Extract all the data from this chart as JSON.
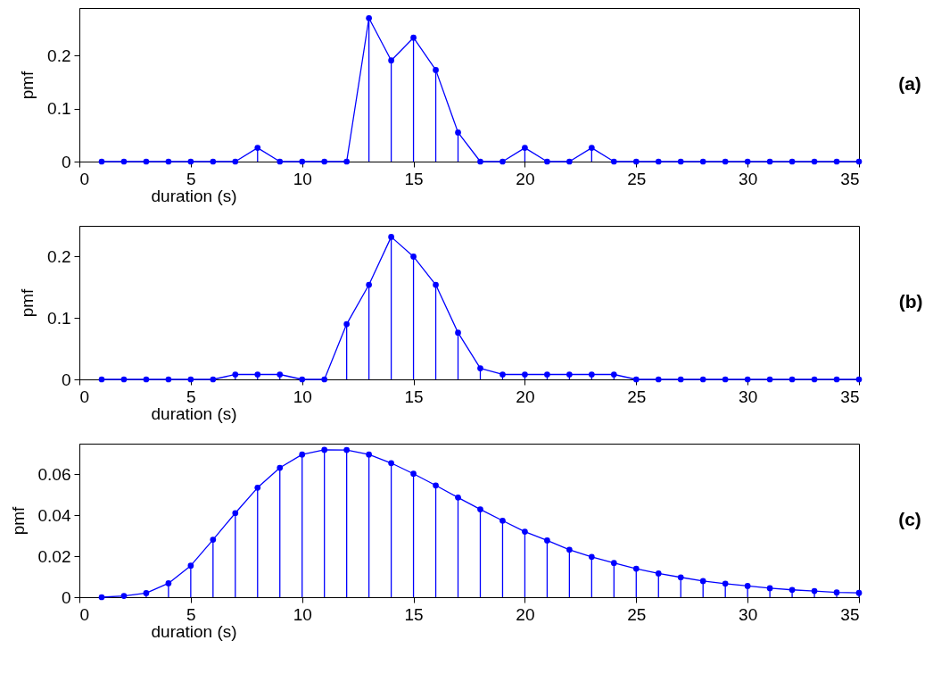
{
  "chart_data": [
    {
      "type": "lollipop",
      "xlabel": "duration (s)",
      "ylabel": "pmf",
      "annotations": [
        "(a)"
      ],
      "x": [
        1,
        2,
        3,
        4,
        5,
        6,
        7,
        8,
        9,
        10,
        11,
        12,
        13,
        14,
        15,
        16,
        17,
        18,
        19,
        20,
        21,
        22,
        23,
        24,
        25,
        26,
        27,
        28,
        29,
        30,
        31,
        32,
        33,
        34,
        35
      ],
      "xlim": [
        0,
        35
      ],
      "xticks": [
        0,
        5,
        10,
        15,
        20,
        25,
        30,
        35
      ],
      "ylim": [
        0,
        0.29
      ],
      "yticks": [
        0,
        0.1,
        0.2
      ],
      "marker": "circle",
      "series": [
        {
          "color": "#0000ff",
          "values": [
            0,
            0,
            0,
            0,
            0,
            0,
            0,
            0.026,
            0,
            0,
            0,
            0,
            0.271,
            0.191,
            0.234,
            0.173,
            0.055,
            0,
            0,
            0.026,
            0,
            0,
            0.026,
            0,
            0,
            0,
            0,
            0,
            0,
            0,
            0,
            0,
            0,
            0,
            0
          ]
        },
        {
          "type": "line",
          "marker": "none",
          "color": "#0000ff",
          "values": [
            0,
            0,
            0,
            0,
            0,
            0,
            0,
            0.026,
            0,
            0,
            0,
            0,
            0.271,
            0.191,
            0.234,
            0.173,
            0.055,
            0,
            0,
            0.026,
            0,
            0,
            0.026,
            0,
            0,
            0,
            0,
            0,
            0,
            0,
            0,
            0,
            0,
            0,
            0
          ]
        }
      ]
    },
    {
      "type": "lollipop",
      "xlabel": "duration (s)",
      "ylabel": "pmf",
      "annotations": [
        "(b)"
      ],
      "x": [
        1,
        2,
        3,
        4,
        5,
        6,
        7,
        8,
        9,
        10,
        11,
        12,
        13,
        14,
        15,
        16,
        17,
        18,
        19,
        20,
        21,
        22,
        23,
        24,
        25,
        26,
        27,
        28,
        29,
        30,
        31,
        32,
        33,
        34,
        35
      ],
      "xlim": [
        0,
        35
      ],
      "xticks": [
        0,
        5,
        10,
        15,
        20,
        25,
        30,
        35
      ],
      "ylim": [
        0,
        0.25
      ],
      "yticks": [
        0,
        0.1,
        0.2
      ],
      "marker": "circle",
      "series": [
        {
          "color": "#0000ff",
          "values": [
            0,
            0,
            0,
            0,
            0,
            0,
            0.008,
            0.008,
            0.008,
            0,
            0,
            0.09,
            0.154,
            0.232,
            0.2,
            0.154,
            0.076,
            0.018,
            0.008,
            0.008,
            0.008,
            0.008,
            0.008,
            0.008,
            0,
            0,
            0,
            0,
            0,
            0,
            0,
            0,
            0,
            0,
            0
          ]
        },
        {
          "type": "line",
          "marker": "none",
          "color": "#0000ff",
          "values": [
            0,
            0,
            0,
            0,
            0,
            0,
            0.008,
            0.008,
            0.008,
            0,
            0,
            0.09,
            0.154,
            0.232,
            0.2,
            0.154,
            0.076,
            0.018,
            0.008,
            0.008,
            0.008,
            0.008,
            0.008,
            0.008,
            0,
            0,
            0,
            0,
            0,
            0,
            0,
            0,
            0,
            0,
            0
          ]
        }
      ]
    },
    {
      "type": "lollipop",
      "xlabel": "duration (s)",
      "ylabel": "pmf",
      "annotations": [
        "(c)"
      ],
      "x": [
        1,
        2,
        3,
        4,
        5,
        6,
        7,
        8,
        9,
        10,
        11,
        12,
        13,
        14,
        15,
        16,
        17,
        18,
        19,
        20,
        21,
        22,
        23,
        24,
        25,
        26,
        27,
        28,
        29,
        30,
        31,
        32,
        33,
        34,
        35
      ],
      "xlim": [
        0,
        35
      ],
      "xticks": [
        0,
        5,
        10,
        15,
        20,
        25,
        30,
        35
      ],
      "ylim": [
        0,
        0.075
      ],
      "yticks": [
        0,
        0.02,
        0.04,
        0.06
      ],
      "marker": "circle",
      "series": [
        {
          "color": "#0000ff",
          "values": [
            0,
            0.0006,
            0.002,
            0.0068,
            0.0154,
            0.0281,
            0.0411,
            0.0535,
            0.0632,
            0.0697,
            0.072,
            0.0719,
            0.0697,
            0.0655,
            0.0603,
            0.0546,
            0.0487,
            0.0429,
            0.0374,
            0.032,
            0.0277,
            0.0232,
            0.0197,
            0.0167,
            0.0139,
            0.0116,
            0.0097,
            0.0079,
            0.0066,
            0.0055,
            0.0044,
            0.0036,
            0.003,
            0.0023,
            0.0021
          ]
        },
        {
          "type": "line",
          "marker": "none",
          "color": "#0000ff",
          "values": [
            0,
            0.0006,
            0.002,
            0.0068,
            0.0154,
            0.0281,
            0.0411,
            0.0535,
            0.0632,
            0.0697,
            0.072,
            0.0719,
            0.0697,
            0.0655,
            0.0603,
            0.0546,
            0.0487,
            0.0429,
            0.0374,
            0.032,
            0.0277,
            0.0232,
            0.0197,
            0.0167,
            0.0139,
            0.0116,
            0.0097,
            0.0079,
            0.0066,
            0.0055,
            0.0044,
            0.0036,
            0.003,
            0.0023,
            0.0021
          ]
        }
      ]
    }
  ]
}
